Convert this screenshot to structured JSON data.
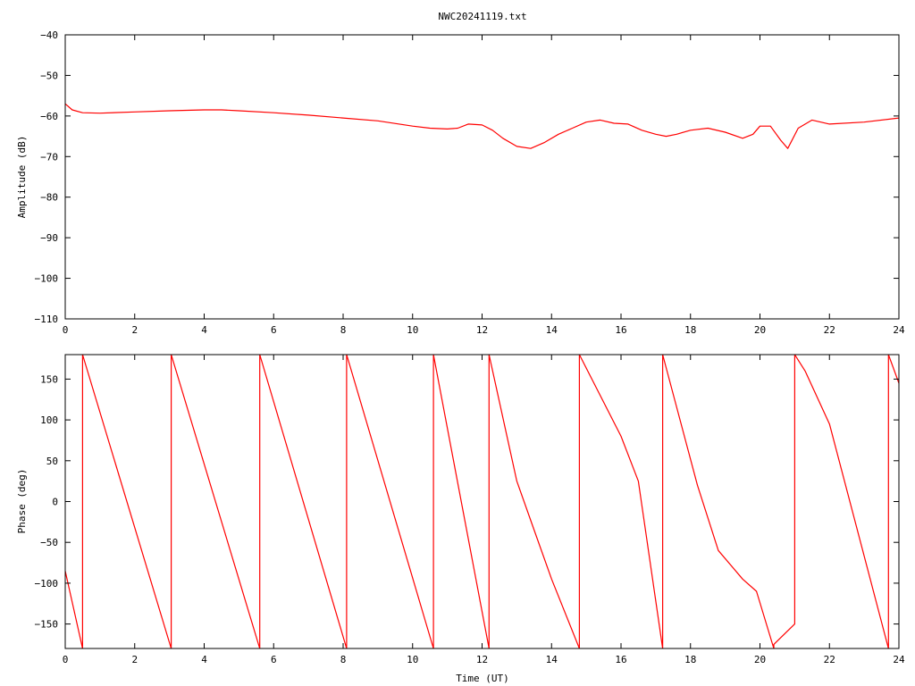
{
  "title": "NWC20241119.txt",
  "colors": {
    "series": "#ff0000",
    "axis": "#000000",
    "background": "#ffffff"
  },
  "chart_data": [
    {
      "type": "line",
      "name": "amplitude",
      "ylabel": "Amplitude (dB)",
      "xlabel": "",
      "xlim": [
        0,
        24
      ],
      "ylim": [
        -110,
        -40
      ],
      "xticks": [
        0,
        2,
        4,
        6,
        8,
        10,
        12,
        14,
        16,
        18,
        20,
        22,
        24
      ],
      "yticks": [
        -110,
        -100,
        -90,
        -80,
        -70,
        -60,
        -50,
        -40
      ],
      "ytick_labels": [
        "−110",
        "−100",
        "−90",
        "−80",
        "−70",
        "−60",
        "−50",
        "−40"
      ],
      "grid": false,
      "series": [
        {
          "x": [
            0,
            0.2,
            0.5,
            1,
            2,
            3,
            4,
            4.5,
            5,
            6,
            7,
            8,
            9,
            10,
            10.5,
            11,
            11.3,
            11.6,
            12,
            12.3,
            12.6,
            13,
            13.4,
            13.8,
            14.2,
            14.6,
            15,
            15.4,
            15.8,
            16.2,
            16.6,
            17,
            17.3,
            17.6,
            18,
            18.5,
            19,
            19.5,
            19.8,
            20,
            20.3,
            20.6,
            20.8,
            21.1,
            21.5,
            22,
            23,
            24
          ],
          "y": [
            -57,
            -58.5,
            -59.2,
            -59.3,
            -59,
            -58.7,
            -58.5,
            -58.5,
            -58.7,
            -59.2,
            -59.8,
            -60.5,
            -61.2,
            -62.5,
            -63,
            -63.2,
            -63,
            -62,
            -62.2,
            -63.5,
            -65.5,
            -67.5,
            -68,
            -66.5,
            -64.5,
            -63,
            -61.5,
            -61,
            -61.8,
            -62,
            -63.5,
            -64.5,
            -65,
            -64.5,
            -63.5,
            -63,
            -64,
            -65.5,
            -64.5,
            -62.5,
            -62.5,
            -66,
            -68,
            -63,
            -61,
            -62,
            -61.5,
            -60.5
          ]
        }
      ]
    },
    {
      "type": "line",
      "name": "phase",
      "ylabel": "Phase (deg)",
      "xlabel": "Time (UT)",
      "xlim": [
        0,
        24
      ],
      "ylim": [
        -180,
        180
      ],
      "xticks": [
        0,
        2,
        4,
        6,
        8,
        10,
        12,
        14,
        16,
        18,
        20,
        22,
        24
      ],
      "yticks": [
        -150,
        -100,
        -50,
        0,
        50,
        100,
        150
      ],
      "ytick_labels": [
        "−150",
        "−100",
        "−50",
        "0",
        "50",
        "100",
        "150"
      ],
      "grid": false,
      "series": [
        {
          "x": [
            0,
            0.5,
            0.5,
            3.05,
            3.05,
            5.6,
            5.6,
            8.1,
            8.1,
            10.6,
            10.6,
            12.2,
            12.2,
            13.0,
            13.5,
            14.0,
            14.8,
            14.8,
            16.0,
            16.5,
            17.2,
            17.2,
            18.2,
            18.8,
            19.5,
            19.9,
            20.4,
            20.4,
            21.0,
            21.0,
            21.3,
            22.0,
            23.7,
            23.7,
            24.0
          ],
          "y": [
            -85,
            -180,
            180,
            -180,
            180,
            -180,
            180,
            -180,
            180,
            -180,
            180,
            -180,
            180,
            25,
            -35,
            -95,
            -180,
            180,
            80,
            25,
            -180,
            180,
            20,
            -60,
            -95,
            -110,
            -180,
            -175,
            -150,
            180,
            160,
            95,
            -180,
            180,
            145
          ]
        }
      ]
    }
  ]
}
